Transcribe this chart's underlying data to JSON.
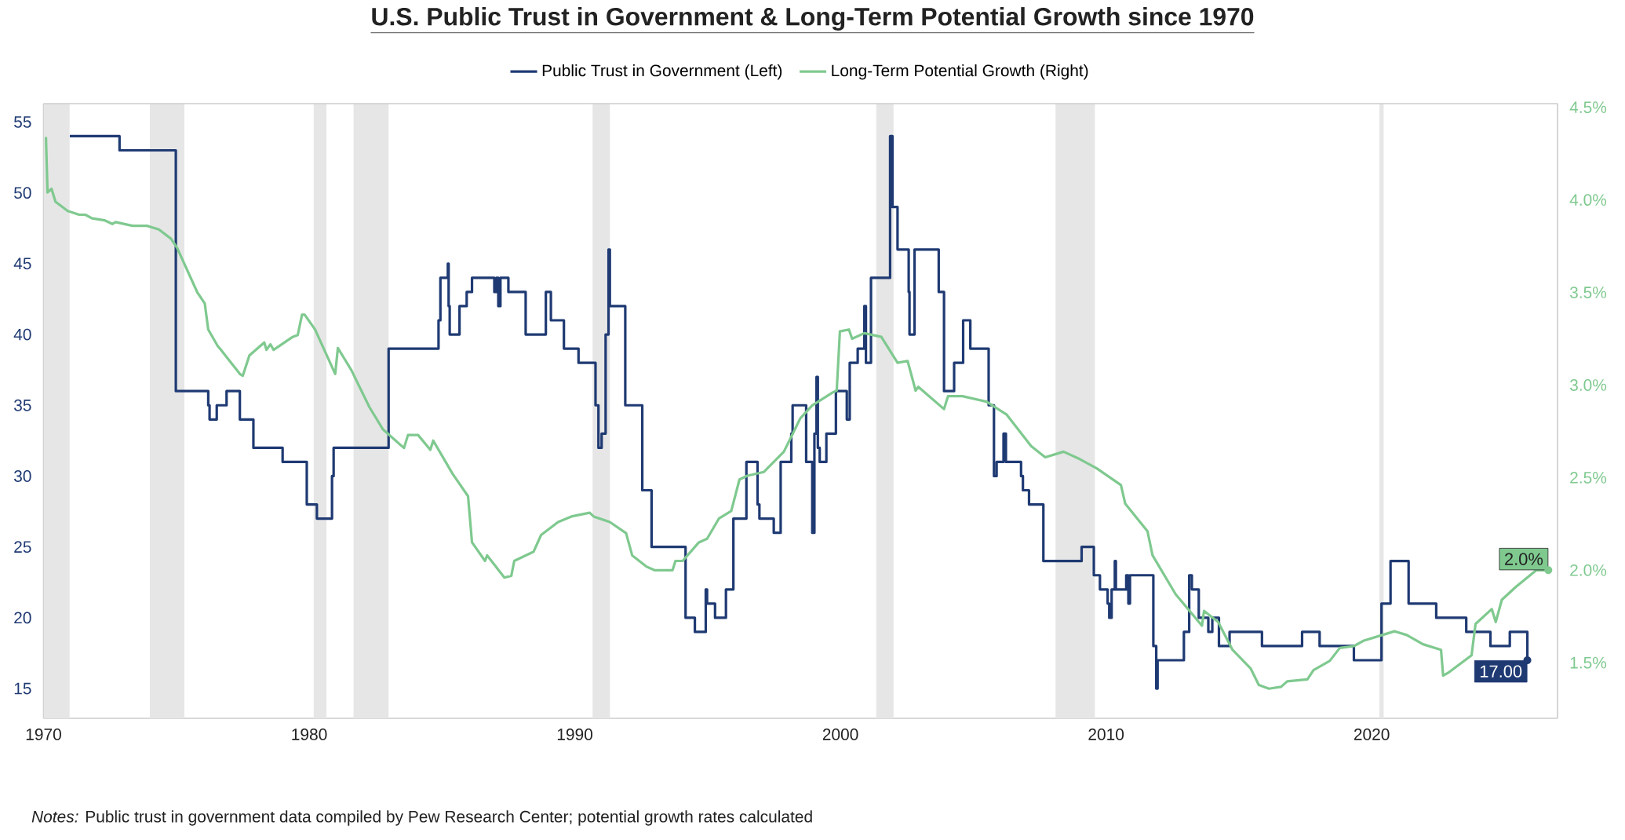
{
  "chart_data": {
    "type": "line",
    "title": "U.S. Public Trust in Government & Long-Term Potential Growth since 1970",
    "legend": "top",
    "xlim": [
      1970,
      2027
    ],
    "xticks": [
      1970,
      1980,
      1990,
      2000,
      2010,
      2020
    ],
    "ylim": [
      12.9,
      56.3
    ],
    "yticks": [
      15,
      20,
      25,
      30,
      35,
      40,
      45,
      50,
      55
    ],
    "y2lim": [
      1.2,
      4.52
    ],
    "y2ticks": [
      {
        "value": 1.5,
        "label": "1.5%"
      },
      {
        "value": 2.0,
        "label": "2.0%"
      },
      {
        "value": 2.5,
        "label": "2.5%"
      },
      {
        "value": 3.0,
        "label": "3.0%"
      },
      {
        "value": 3.5,
        "label": "3.5%"
      },
      {
        "value": 4.0,
        "label": "4.0%"
      },
      {
        "value": 4.5,
        "label": "4.5%"
      }
    ],
    "series": [
      {
        "name": "Public Trust in Government (Left)",
        "type": "step",
        "color": "#1f3a73",
        "x": [
          1970.99,
          1972.86,
          1974.98,
          1976.2,
          1976.25,
          1976.52,
          1976.89,
          1977.39,
          1977.9,
          1979.0,
          1979.91,
          1980.29,
          1980.86,
          1980.92,
          1982.99,
          1984.87,
          1984.94,
          1985.22,
          1985.25,
          1985.29,
          1985.66,
          1985.93,
          1986.13,
          1986.97,
          1987.05,
          1987.12,
          1987.2,
          1987.5,
          1988.15,
          1988.91,
          1989.1,
          1989.59,
          1990.14,
          1990.78,
          1990.89,
          1991.01,
          1991.16,
          1991.27,
          1991.32,
          1991.9,
          1992.54,
          1992.89,
          1994.17,
          1994.52,
          1994.93,
          1994.98,
          1995.28,
          1995.69,
          1995.97,
          1996.46,
          1996.88,
          1996.95,
          1997.49,
          1997.75,
          1998.15,
          1998.2,
          1998.71,
          1998.94,
          1999.02,
          1999.1,
          1999.15,
          1999.22,
          1999.47,
          1999.83,
          2000.24,
          2000.35,
          2000.65,
          2000.9,
          2000.96,
          2001.15,
          2001.87,
          2001.96,
          2002.15,
          2002.57,
          2002.6,
          2002.79,
          2003.7,
          2003.9,
          2004.28,
          2004.62,
          2004.89,
          2005.58,
          2005.78,
          2005.88,
          2006.14,
          2006.23,
          2006.8,
          2006.87,
          2007.1,
          2007.64,
          2009.08,
          2009.54,
          2009.77,
          2010.06,
          2010.12,
          2010.21,
          2010.33,
          2010.37,
          2010.76,
          2010.84,
          2010.9,
          2011.78,
          2011.89,
          2011.94,
          2012.93,
          2013.13,
          2013.23,
          2013.49,
          2013.85,
          2014.0,
          2014.25,
          2014.65,
          2015.87,
          2017.38,
          2018.04,
          2019.33,
          2020.37,
          2020.71,
          2021.39,
          2022.43,
          2023.56,
          2024.47,
          2025.2,
          2025.86
        ],
        "values": [
          54,
          53,
          36,
          35,
          34,
          35,
          36,
          34,
          32,
          31,
          28,
          27,
          30,
          32,
          39,
          41,
          44,
          45,
          42,
          40,
          42,
          43,
          44,
          43,
          44,
          42,
          44,
          43,
          40,
          43,
          41,
          39,
          38,
          35,
          32,
          33,
          40,
          46,
          42,
          35,
          29,
          25,
          20,
          19,
          22,
          21,
          20,
          22,
          27,
          31,
          28,
          27,
          26,
          31,
          33,
          35,
          31,
          26,
          33,
          37,
          32,
          31,
          33,
          36,
          34,
          38,
          39,
          42,
          38,
          44,
          54,
          49,
          46,
          43,
          40,
          46,
          43,
          36,
          38,
          41,
          39,
          35,
          30,
          31,
          33,
          31,
          30,
          29,
          28,
          24,
          25,
          23,
          22,
          21,
          20,
          22,
          24,
          22,
          23,
          21,
          23,
          18,
          15,
          17,
          19,
          23,
          22,
          20,
          19,
          20,
          18,
          19,
          18,
          19,
          18,
          17,
          21,
          24,
          21,
          20,
          19,
          18,
          19,
          17
        ]
      },
      {
        "name": "Long-Term Potential Growth (Right)",
        "axis": "y2",
        "color": "#7fc98f",
        "x": [
          1970.09,
          1970.15,
          1970.3,
          1970.45,
          1970.91,
          1971.34,
          1971.57,
          1971.83,
          1972.29,
          1972.59,
          1972.71,
          1973.35,
          1973.89,
          1974.34,
          1974.8,
          1975.03,
          1975.79,
          1976.07,
          1976.2,
          1976.56,
          1976.68,
          1977.39,
          1977.5,
          1977.75,
          1978.31,
          1978.39,
          1978.54,
          1978.66,
          1979.38,
          1979.57,
          1979.73,
          1979.83,
          1980.22,
          1980.98,
          1981.08,
          1981.59,
          1982.27,
          1982.78,
          1983.57,
          1983.72,
          1984.1,
          1984.56,
          1984.67,
          1985.4,
          1985.98,
          1986.13,
          1986.62,
          1986.7,
          1987.35,
          1987.61,
          1987.72,
          1988.45,
          1988.73,
          1989.37,
          1989.87,
          1990.56,
          1990.71,
          1991.32,
          1991.93,
          1992.16,
          1992.69,
          1993.0,
          1993.68,
          1993.79,
          1994.06,
          1994.67,
          1994.98,
          1995.43,
          1995.89,
          1996.2,
          1996.5,
          1997.11,
          1997.87,
          1998.49,
          1998.94,
          1999.71,
          1999.86,
          1999.98,
          2000.32,
          2000.44,
          2000.9,
          2001.54,
          2002.15,
          2002.53,
          2002.83,
          2002.93,
          2003.9,
          2004.05,
          2004.59,
          2005.5,
          2006.26,
          2007.18,
          2007.71,
          2008.4,
          2009.01,
          2009.65,
          2010.56,
          2010.72,
          2011.56,
          2011.75,
          2012.62,
          2013.61,
          2013.69,
          2014.22,
          2014.76,
          2015.44,
          2015.75,
          2016.13,
          2016.59,
          2016.82,
          2017.58,
          2017.81,
          2018.42,
          2018.8,
          2019.33,
          2019.71,
          2020.4,
          2020.86,
          2021.32,
          2021.93,
          2022.61,
          2022.69,
          2022.92,
          2023.76,
          2023.91,
          2024.52,
          2024.67,
          2024.9,
          2025.43,
          2026.2,
          2026.65
        ],
        "values": [
          4.34,
          4.04,
          4.06,
          3.99,
          3.94,
          3.92,
          3.92,
          3.9,
          3.89,
          3.87,
          3.88,
          3.86,
          3.86,
          3.84,
          3.79,
          3.74,
          3.5,
          3.44,
          3.3,
          3.21,
          3.19,
          3.06,
          3.05,
          3.16,
          3.23,
          3.19,
          3.22,
          3.19,
          3.26,
          3.27,
          3.38,
          3.38,
          3.3,
          3.06,
          3.2,
          3.08,
          2.88,
          2.76,
          2.66,
          2.73,
          2.73,
          2.65,
          2.7,
          2.52,
          2.4,
          2.15,
          2.05,
          2.08,
          1.96,
          1.97,
          2.05,
          2.1,
          2.19,
          2.26,
          2.29,
          2.31,
          2.29,
          2.26,
          2.2,
          2.08,
          2.02,
          2.0,
          2.0,
          2.05,
          2.05,
          2.15,
          2.17,
          2.28,
          2.32,
          2.49,
          2.51,
          2.53,
          2.64,
          2.82,
          2.89,
          2.96,
          2.97,
          3.29,
          3.3,
          3.25,
          3.28,
          3.26,
          3.12,
          3.13,
          2.97,
          2.99,
          2.87,
          2.94,
          2.94,
          2.91,
          2.84,
          2.67,
          2.61,
          2.64,
          2.6,
          2.55,
          2.46,
          2.36,
          2.21,
          2.08,
          1.87,
          1.7,
          1.78,
          1.72,
          1.57,
          1.47,
          1.38,
          1.36,
          1.37,
          1.4,
          1.41,
          1.46,
          1.51,
          1.58,
          1.59,
          1.62,
          1.65,
          1.67,
          1.65,
          1.6,
          1.57,
          1.43,
          1.45,
          1.54,
          1.71,
          1.79,
          1.72,
          1.84,
          1.91,
          2.0,
          2.0
        ],
        "value_labels": [
          null,
          null,
          null,
          null,
          null,
          null,
          null,
          null,
          null,
          null,
          null,
          null,
          null,
          null,
          null,
          null,
          null,
          null,
          null,
          null,
          null,
          null,
          null,
          null,
          null,
          null,
          null,
          null,
          null,
          null,
          null,
          null,
          null,
          null,
          null,
          null,
          null,
          null,
          null,
          null,
          null,
          null,
          null,
          null,
          null,
          null,
          null,
          null,
          null,
          null,
          null,
          null,
          null,
          null,
          null,
          null,
          null,
          null,
          null,
          null,
          null,
          null,
          null,
          null,
          null,
          null,
          null,
          null,
          null,
          null,
          null,
          null,
          null,
          null,
          null,
          null,
          null,
          null,
          null,
          null,
          null,
          null,
          null,
          null,
          null,
          null,
          null,
          null,
          null,
          null,
          null,
          null,
          null,
          null,
          null,
          null,
          null,
          null,
          null,
          null,
          null,
          null,
          null,
          null,
          null,
          null,
          null,
          null,
          null,
          null,
          null,
          null,
          null,
          null,
          null,
          null,
          null,
          null,
          null,
          null,
          null,
          null,
          null,
          null,
          null,
          null,
          null,
          null,
          null,
          null,
          "2.0%"
        ]
      }
    ],
    "bands": [
      {
        "axis": "x",
        "from": 1970.0,
        "to": 1970.98,
        "color": "#e6e6e6"
      },
      {
        "axis": "x",
        "from": 1974.0,
        "to": 1975.3,
        "color": "#e6e6e6"
      },
      {
        "axis": "x",
        "from": 1980.17,
        "to": 1980.65,
        "color": "#e6e6e6"
      },
      {
        "axis": "x",
        "from": 1981.67,
        "to": 1982.99,
        "color": "#e6e6e6"
      },
      {
        "axis": "x",
        "from": 1990.67,
        "to": 1991.32,
        "color": "#e6e6e6"
      },
      {
        "axis": "x",
        "from": 2001.35,
        "to": 2002.0,
        "color": "#e6e6e6"
      },
      {
        "axis": "x",
        "from": 2008.1,
        "to": 2009.58,
        "color": "#e6e6e6"
      },
      {
        "axis": "x",
        "from": 2020.29,
        "to": 2020.45,
        "color": "#e6e6e6"
      }
    ],
    "annotations": [
      {
        "text": "17.00",
        "x": 2025.86,
        "y": 17
      },
      "*Notes:* Public trust in government data compiled by Pew Research Center; potential growth rates calculated"
    ]
  }
}
